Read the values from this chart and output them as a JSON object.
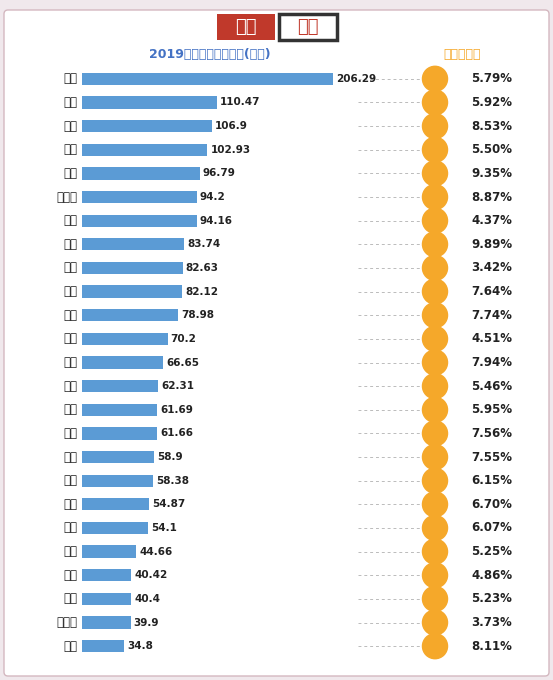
{
  "title_bar": "2019年小学生在校数量(万人)",
  "title_ratio": "小学生比例",
  "logo_text1": "新京",
  "logo_text2": "智库",
  "cities": [
    "重庆",
    "广州",
    "深圳",
    "成都",
    "郑州",
    "石家庄",
    "北京",
    "东莞",
    "上海",
    "苏州",
    "西安",
    "天津",
    "长沙",
    "武汉",
    "杭州",
    "佛山",
    "福州",
    "青岛",
    "合肥",
    "济南",
    "南京",
    "沈阳",
    "长春",
    "哈尔滨",
    "厦门"
  ],
  "values": [
    206.29,
    110.47,
    106.9,
    102.93,
    96.79,
    94.2,
    94.16,
    83.74,
    82.63,
    82.12,
    78.98,
    70.2,
    66.65,
    62.31,
    61.69,
    61.66,
    58.9,
    58.38,
    54.87,
    54.1,
    44.66,
    40.42,
    40.4,
    39.9,
    34.8
  ],
  "ratios": [
    "5.79%",
    "5.92%",
    "8.53%",
    "5.50%",
    "9.35%",
    "8.87%",
    "4.37%",
    "9.89%",
    "3.42%",
    "7.64%",
    "7.74%",
    "4.51%",
    "7.94%",
    "5.46%",
    "5.95%",
    "7.56%",
    "7.55%",
    "6.15%",
    "6.70%",
    "6.07%",
    "5.25%",
    "4.86%",
    "5.23%",
    "3.73%",
    "8.11%"
  ],
  "bar_color": "#5b9bd5",
  "circle_color": "#f5a82a",
  "bg_color": "#f0e8ec",
  "inner_bg": "#ffffff",
  "title_color": "#4472c4",
  "ratio_title_color": "#f5a82a",
  "logo_bg1": "#c0392b",
  "logo_text_color": "#ffffff",
  "value_text_color": "#222222",
  "city_text_color": "#222222",
  "ratio_text_color": "#222222",
  "max_value": 220
}
